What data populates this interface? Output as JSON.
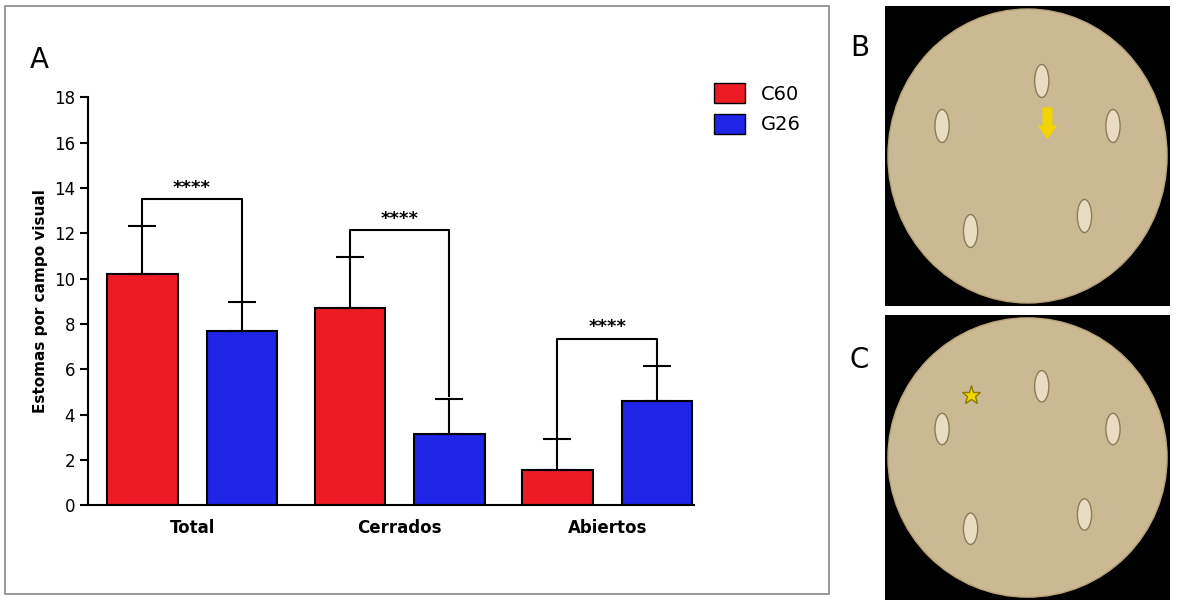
{
  "chart_data": {
    "type": "bar",
    "panel_label": "A",
    "categories": [
      "Total",
      "Cerrados",
      "Abiertos"
    ],
    "series": [
      {
        "name": "C60",
        "color": "#ed1c24",
        "values": [
          10.2,
          8.7,
          1.55
        ],
        "errors": [
          2.1,
          2.25,
          1.35
        ]
      },
      {
        "name": "G26",
        "color": "#1f24e6",
        "values": [
          7.7,
          3.15,
          4.6
        ],
        "errors": [
          1.25,
          1.55,
          1.55
        ]
      }
    ],
    "y_label": "Estomas por campo visual",
    "ylim": [
      0,
      18
    ],
    "yticks": [
      0,
      2,
      4,
      6,
      8,
      10,
      12,
      14,
      16,
      18
    ],
    "legend": "upper right",
    "annotations": [
      {
        "text": "****",
        "category": "Total"
      },
      {
        "text": "****",
        "category": "Cerrados"
      },
      {
        "text": "****",
        "category": "Abiertos"
      }
    ]
  },
  "images": [
    {
      "label": "B"
    },
    {
      "label": "C"
    }
  ]
}
